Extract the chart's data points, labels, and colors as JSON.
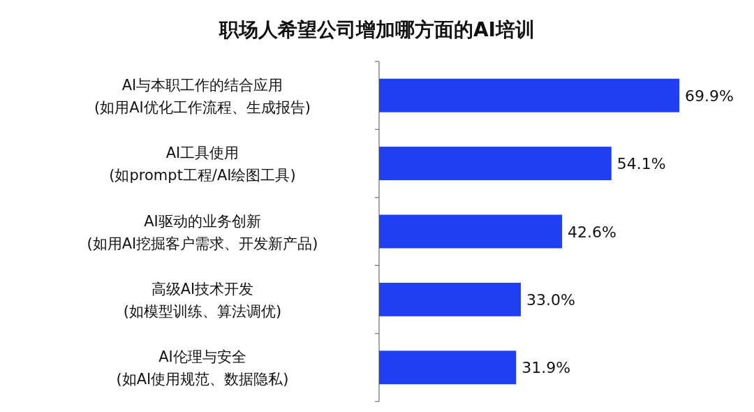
{
  "chart_data": {
    "type": "bar",
    "orientation": "horizontal",
    "title": "职场人希望公司增加哪方面的AI培训",
    "categories": [
      "AI与本职工作的结合应用\n(如用AI优化工作流程、生成报告)",
      "AI工具使用\n(如prompt工程/AI绘图工具)",
      "AI驱动的业务创新\n(如用AI挖掘客户需求、开发新产品)",
      "高级AI技术开发\n(如模型训练、算法调优)",
      "AI伦理与安全\n(如AI使用规范、数据隐私)"
    ],
    "values": [
      69.9,
      54.1,
      42.6,
      33.0,
      31.9
    ],
    "value_labels": [
      "69.9%",
      "54.1%",
      "42.6%",
      "33.0%",
      "31.9%"
    ],
    "color": "#1f3ff0"
  }
}
